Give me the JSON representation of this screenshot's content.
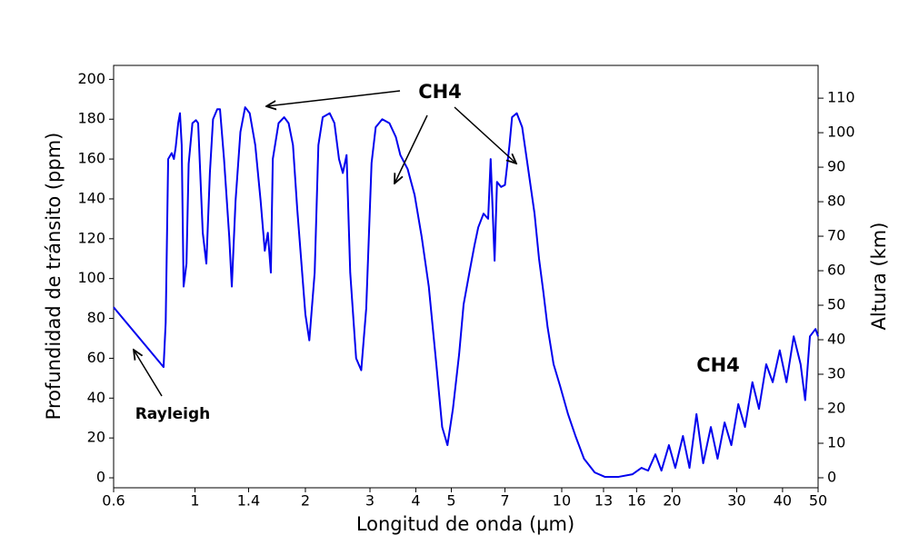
{
  "chart_data": {
    "type": "line",
    "xlabel": "Longitud de onda (µm)",
    "ylabel": "Profundidad de tránsito (ppm)",
    "y2label": "Altura (km)",
    "xscale": "log",
    "xlim": [
      0.6,
      50
    ],
    "xticks": [
      0.6,
      1,
      1.4,
      2,
      3,
      4,
      5,
      7,
      10,
      13,
      16,
      20,
      30,
      40,
      50
    ],
    "ylim": [
      -5,
      207
    ],
    "yticks": [
      0,
      20,
      40,
      60,
      80,
      100,
      120,
      140,
      160,
      180,
      200
    ],
    "y2lim": [
      -2.9,
      119.5
    ],
    "y2ticks": [
      0,
      10,
      20,
      30,
      40,
      50,
      60,
      70,
      80,
      90,
      100,
      110
    ],
    "annotations": [
      "CH4",
      "CH4",
      "Rayleigh"
    ],
    "series": [
      {
        "color": "#0000ee",
        "x": [
          0.6,
          0.821,
          0.832,
          0.845,
          0.864,
          0.876,
          0.886,
          0.9,
          0.91,
          0.92,
          0.931,
          0.948,
          0.961,
          0.984,
          1.006,
          1.02,
          1.05,
          1.074,
          1.098,
          1.12,
          1.15,
          1.17,
          1.2,
          1.24,
          1.26,
          1.29,
          1.33,
          1.37,
          1.41,
          1.46,
          1.51,
          1.55,
          1.58,
          1.61,
          1.63,
          1.69,
          1.75,
          1.8,
          1.85,
          1.9,
          2.0,
          2.05,
          2.12,
          2.17,
          2.23,
          2.33,
          2.4,
          2.47,
          2.53,
          2.59,
          2.65,
          2.75,
          2.84,
          2.93,
          3.03,
          3.11,
          3.24,
          3.39,
          3.53,
          3.63,
          3.8,
          3.97,
          4.15,
          4.34,
          4.55,
          4.72,
          4.88,
          5.05,
          5.25,
          5.4,
          5.6,
          5.78,
          5.92,
          6.12,
          6.3,
          6.4,
          6.45,
          6.56,
          6.66,
          6.83,
          7.0,
          7.2,
          7.32,
          7.54,
          7.8,
          8.1,
          8.43,
          8.67,
          8.9,
          9.15,
          9.5,
          9.9,
          10.4,
          10.9,
          11.5,
          12.3,
          13.1,
          14.3,
          15.6,
          16.5,
          17.2,
          18.0,
          18.7,
          19.6,
          20.4,
          21.4,
          22.3,
          23.3,
          24.3,
          25.5,
          26.6,
          27.8,
          29,
          30.3,
          31.6,
          33.1,
          34.5,
          36.1,
          37.6,
          39.3,
          41,
          42.9,
          44.8,
          46.1,
          47.5,
          49.2,
          50
        ],
        "values": [
          85.6,
          55.6,
          78,
          160,
          163,
          160,
          166,
          178,
          183,
          167,
          96,
          107.5,
          157.6,
          178,
          179.5,
          178,
          123,
          107.5,
          153,
          180,
          185,
          185,
          160,
          121,
          96,
          139,
          173.6,
          186,
          183,
          167,
          139,
          114,
          123,
          103,
          160,
          178,
          181,
          178,
          167,
          135,
          82,
          69,
          103,
          167,
          181,
          183,
          178,
          160,
          153,
          162,
          103,
          60,
          54,
          85,
          158,
          176,
          180,
          178,
          171,
          162,
          155,
          142,
          121,
          96,
          57,
          25.5,
          16.4,
          34.6,
          62,
          87,
          103,
          116.6,
          125.7,
          132.6,
          130,
          160,
          144,
          109,
          148.5,
          146,
          147,
          166.7,
          181,
          183,
          176,
          155,
          132.6,
          110,
          94,
          75.6,
          57,
          46,
          32,
          21,
          9.6,
          2.7,
          0.5,
          0.5,
          1.8,
          5,
          3.6,
          11.8,
          3.6,
          16.4,
          5,
          21,
          5,
          32,
          7.3,
          25.5,
          9.6,
          27.8,
          16.4,
          37,
          25.5,
          48,
          34.6,
          57,
          48,
          64,
          48,
          71,
          57,
          39,
          71,
          74.7,
          71
        ]
      }
    ]
  }
}
